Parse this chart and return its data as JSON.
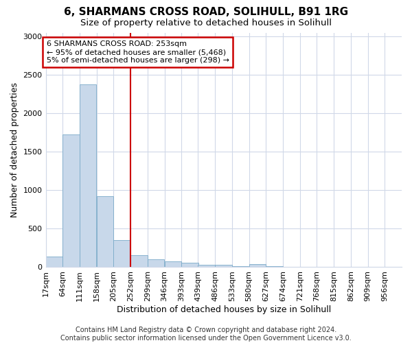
{
  "title": "6, SHARMANS CROSS ROAD, SOLIHULL, B91 1RG",
  "subtitle": "Size of property relative to detached houses in Solihull",
  "xlabel": "Distribution of detached houses by size in Solihull",
  "ylabel": "Number of detached properties",
  "footer_line1": "Contains HM Land Registry data © Crown copyright and database right 2024.",
  "footer_line2": "Contains public sector information licensed under the Open Government Licence v3.0.",
  "annotation_line1": "6 SHARMANS CROSS ROAD: 253sqm",
  "annotation_line2": "← 95% of detached houses are smaller (5,468)",
  "annotation_line3": "5% of semi-detached houses are larger (298) →",
  "bar_color": "#c8d8ea",
  "bar_edge_color": "#7aaac8",
  "vline_color": "#cc0000",
  "annotation_box_color": "#cc0000",
  "categories": [
    "17sqm",
    "64sqm",
    "111sqm",
    "158sqm",
    "205sqm",
    "252sqm",
    "299sqm",
    "346sqm",
    "393sqm",
    "439sqm",
    "486sqm",
    "533sqm",
    "580sqm",
    "627sqm",
    "674sqm",
    "721sqm",
    "768sqm",
    "815sqm",
    "862sqm",
    "909sqm",
    "956sqm"
  ],
  "bin_starts": [
    17,
    64,
    111,
    158,
    205,
    252,
    299,
    346,
    393,
    439,
    486,
    533,
    580,
    627,
    674,
    721,
    768,
    815,
    862,
    909,
    956
  ],
  "bin_width": 47,
  "values": [
    130,
    1720,
    2380,
    920,
    350,
    155,
    95,
    75,
    55,
    30,
    25,
    10,
    35,
    5,
    3,
    2,
    2,
    1,
    1,
    1,
    0
  ],
  "vline_x": 252,
  "ylim": [
    0,
    3050
  ],
  "yticks": [
    0,
    500,
    1000,
    1500,
    2000,
    2500,
    3000
  ],
  "background_color": "#ffffff",
  "plot_background_color": "#ffffff",
  "grid_color": "#d0d8e8",
  "title_fontsize": 11,
  "subtitle_fontsize": 9.5,
  "axis_label_fontsize": 9,
  "tick_fontsize": 8,
  "footer_fontsize": 7,
  "annotation_fontsize": 8
}
